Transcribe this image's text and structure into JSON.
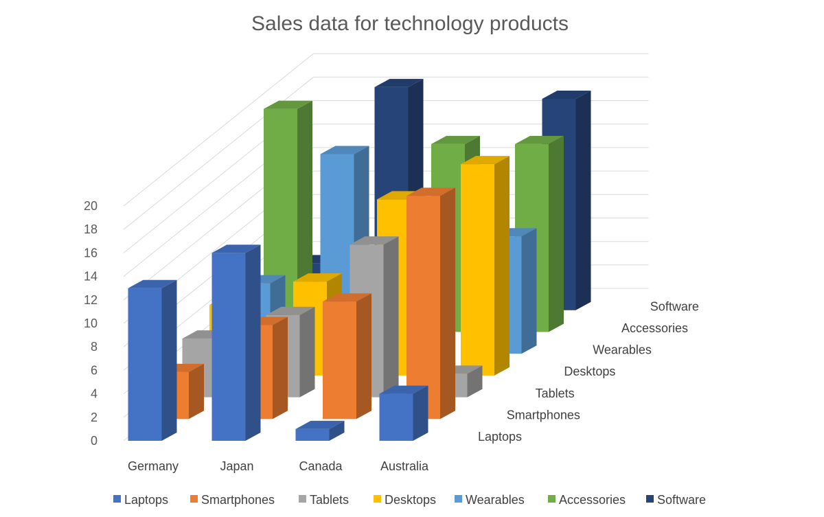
{
  "chart_data": {
    "type": "bar",
    "subtype": "3d-column",
    "title": "Sales data for technology products",
    "xlabel": "",
    "ylabel": "",
    "ylim": [
      0,
      20
    ],
    "y_ticks": [
      "0",
      "2",
      "4",
      "6",
      "8",
      "10",
      "12",
      "14",
      "16",
      "18",
      "20"
    ],
    "categories": [
      "Germany",
      "Japan",
      "Canada",
      "Australia"
    ],
    "grid": true,
    "legend_position": "bottom",
    "series": [
      {
        "name": "Laptops",
        "color": "#4472C4",
        "values": [
          13,
          16,
          1,
          4
        ]
      },
      {
        "name": "Smartphones",
        "color": "#ED7D31",
        "values": [
          4,
          8,
          10,
          19
        ]
      },
      {
        "name": "Tablets",
        "color": "#A5A5A5",
        "values": [
          5,
          7,
          13,
          2
        ]
      },
      {
        "name": "Desktops",
        "color": "#FFC000",
        "values": [
          6,
          8,
          15,
          18
        ]
      },
      {
        "name": "Wearables",
        "color": "#5B9BD5",
        "values": [
          6,
          17,
          9,
          10
        ]
      },
      {
        "name": "Accessories",
        "color": "#70AD47",
        "values": [
          19,
          2,
          16,
          16
        ]
      },
      {
        "name": "Software",
        "color": "#264478",
        "values": [
          4,
          19,
          1,
          18
        ]
      }
    ]
  }
}
